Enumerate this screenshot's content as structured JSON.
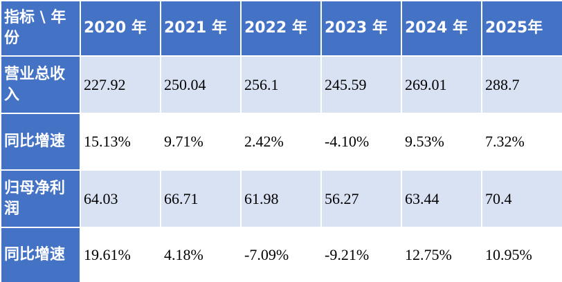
{
  "table": {
    "header": [
      "指标 \\ 年份",
      "2020 年",
      "2021 年",
      "2022 年",
      "2023 年",
      "2024 年",
      "2025年"
    ],
    "rows": [
      [
        "营业总收入",
        "227.92",
        "250.04",
        "256.1",
        "245.59",
        "269.01",
        "288.7"
      ],
      [
        "同比增速",
        "15.13%",
        "9.71%",
        "2.42%",
        "-4.10%",
        "9.53%",
        "7.32%"
      ],
      [
        "归母净利润",
        "64.03",
        "66.71",
        "61.98",
        "56.27",
        "63.44",
        "70.4"
      ],
      [
        "同比增速",
        "19.61%",
        "4.18%",
        "-7.09%",
        "-9.21%",
        "12.75%",
        "10.95%"
      ]
    ]
  }
}
